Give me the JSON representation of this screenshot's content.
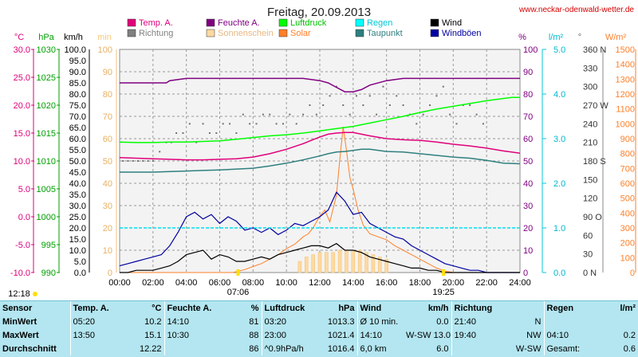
{
  "site": "www.neckar-odenwald-wetter.de",
  "chart_data": {
    "type": "line",
    "title": "Freitag, 20.09.2013",
    "x_ticks": [
      "00:00",
      "02:00",
      "04:00",
      "06:00",
      "08:00",
      "10:00",
      "12:00",
      "14:00",
      "16:00",
      "18:00",
      "20:00",
      "22:00",
      "24:00"
    ],
    "sunrise": "07:06",
    "sunset": "19:25",
    "left_marker": "12:18",
    "axes": {
      "temp": {
        "unit": "°C",
        "color": "#e0007a",
        "min": -10,
        "max": 30,
        "step": 5,
        "ticks": [
          "30.0",
          "25.0",
          "20.0",
          "15.0",
          "10.0",
          "5.0",
          "0.0",
          "-5.0",
          "-10.0"
        ]
      },
      "pressure": {
        "unit": "hPa",
        "color": "#00a000",
        "min": 990,
        "max": 1030,
        "step": 5,
        "ticks": [
          "1030",
          "1025",
          "1020",
          "1015",
          "1010",
          "1005",
          "1000",
          "995",
          "990"
        ]
      },
      "wind": {
        "unit": "km/h",
        "color": "#000000",
        "min": 0,
        "max": 100,
        "step": 5
      },
      "sunshine": {
        "unit": "min",
        "color": "#f5c97a",
        "min": 0,
        "max": 100,
        "step": 10
      },
      "humidity": {
        "unit": "%",
        "color": "#800080",
        "min": 0,
        "max": 100,
        "step": 10
      },
      "rain": {
        "unit": "l/m²",
        "color": "#00c8d8",
        "min": 0,
        "max": 5,
        "step": 1,
        "ticks": [
          "5.0",
          "4.0",
          "3.0",
          "2.0",
          "1.0",
          "0.0"
        ]
      },
      "direction": {
        "unit": "°",
        "color": "#555555",
        "min": 0,
        "max": 360,
        "step": 30,
        "ticks": [
          "360 N",
          "330",
          "300",
          "270 W",
          "240",
          "210",
          "180 S",
          "150",
          "120",
          "90 O",
          "60",
          "30",
          "0 N"
        ]
      },
      "solar": {
        "unit": "W/m²",
        "color": "#ff7f27",
        "min": 0,
        "max": 1500,
        "step": 100
      }
    },
    "legend": [
      {
        "name": "Temp. A.",
        "color": "#e0007a"
      },
      {
        "name": "Feuchte A.",
        "color": "#800080"
      },
      {
        "name": "Luftdruck",
        "color": "#00ff00"
      },
      {
        "name": "Regen",
        "color": "#00ffff"
      },
      {
        "name": "Wind",
        "color": "#000000"
      },
      {
        "name": "Richtung",
        "color": "#808080"
      },
      {
        "name": "Sonnenschein",
        "color": "#ffd9a0"
      },
      {
        "name": "Solar",
        "color": "#ff7f27"
      },
      {
        "name": "Taupunkt",
        "color": "#2f7f7f"
      },
      {
        "name": "Windböen",
        "color": "#0000a0"
      }
    ],
    "series": [
      {
        "name": "Temp. A.",
        "axis": "temp",
        "color": "#e0007a",
        "x": [
          0,
          1,
          2,
          3,
          4,
          5,
          6,
          7,
          8,
          9,
          10,
          10.5,
          11,
          11.5,
          12,
          12.5,
          13,
          13.5,
          14,
          14.5,
          15,
          16,
          17,
          18,
          19,
          20,
          21,
          22,
          23,
          24
        ],
        "y": [
          10.6,
          10.5,
          10.4,
          10.3,
          10.2,
          10.2,
          10.3,
          10.4,
          10.7,
          11.3,
          12.1,
          12.6,
          13.1,
          13.7,
          14.3,
          14.8,
          15.0,
          15.1,
          15.1,
          14.8,
          14.5,
          14.0,
          13.8,
          13.7,
          13.4,
          13.0,
          12.7,
          12.3,
          11.8,
          11.4
        ]
      },
      {
        "name": "Feuchte A.",
        "axis": "humidity",
        "color": "#800080",
        "x": [
          0,
          2,
          2.8,
          3,
          4,
          6,
          8,
          10,
          11,
          12,
          12.5,
          13,
          13.5,
          14,
          14.5,
          15,
          16,
          17,
          18,
          20,
          22,
          24
        ],
        "y": [
          85,
          85,
          85,
          86,
          87,
          87,
          87,
          87,
          87,
          86,
          85,
          83,
          81,
          81,
          82,
          84,
          86,
          87,
          87,
          87,
          87,
          87
        ],
        "dashed": false
      },
      {
        "name": "Luftdruck",
        "axis": "pressure",
        "color": "#00ff00",
        "x": [
          0,
          1,
          2,
          3,
          4,
          5,
          6,
          7,
          8,
          9,
          10,
          11,
          12,
          13,
          14,
          15,
          16,
          17,
          18,
          19,
          20,
          21,
          22,
          23,
          23.5,
          24
        ],
        "y": [
          1013.4,
          1013.3,
          1013.3,
          1013.4,
          1013.4,
          1013.5,
          1013.6,
          1013.9,
          1014.2,
          1014.5,
          1014.7,
          1015.0,
          1015.4,
          1015.8,
          1016.2,
          1016.8,
          1017.4,
          1018.0,
          1018.7,
          1019.3,
          1019.8,
          1020.3,
          1020.8,
          1021.2,
          1021.4,
          1021.4
        ]
      },
      {
        "name": "Taupunkt",
        "axis": "temp",
        "color": "#2f7f7f",
        "x": [
          0,
          2,
          4,
          6,
          8,
          9,
          10,
          11,
          12,
          12.5,
          13,
          13.5,
          14,
          14.5,
          15,
          16,
          17,
          18,
          19,
          20,
          21,
          22,
          23,
          24
        ],
        "y": [
          8.0,
          8.0,
          8.2,
          8.4,
          8.7,
          9.1,
          9.6,
          10.2,
          10.9,
          11.3,
          11.6,
          11.7,
          11.9,
          12.1,
          12.1,
          11.7,
          11.6,
          11.3,
          11.0,
          10.7,
          10.5,
          10.1,
          9.6,
          9.5
        ]
      },
      {
        "name": "Regen",
        "axis": "rain",
        "color": "#00e0f0",
        "x": [
          0,
          7,
          8,
          24
        ],
        "y": [
          1.0,
          1.0,
          1.0,
          1.0
        ]
      }
    ],
    "wind": {
      "axis": "wind",
      "color": "#000000",
      "x": [
        0,
        0.5,
        1,
        1.5,
        2,
        2.5,
        3,
        3.5,
        4,
        4.5,
        5,
        5.5,
        6,
        6.5,
        7,
        7.5,
        8,
        8.5,
        9,
        9.5,
        10,
        10.5,
        11,
        11.5,
        12,
        12.5,
        13,
        13.5,
        14,
        14.5,
        15,
        15.5,
        16,
        16.5,
        17,
        17.5,
        18,
        18.5,
        19,
        19.5,
        20,
        20.5,
        21,
        21.5,
        22,
        22.5,
        23,
        23.5,
        24
      ],
      "y": [
        0,
        0,
        1,
        1,
        1,
        2,
        3,
        5,
        8,
        9,
        10,
        6,
        8,
        7,
        5,
        5,
        6,
        7,
        6,
        8,
        9,
        10,
        11,
        12,
        12,
        11,
        13,
        10,
        10,
        9,
        7,
        6,
        5,
        4,
        3,
        2,
        2,
        1,
        1,
        0,
        0,
        0,
        0,
        0,
        0,
        0,
        0,
        0,
        0
      ]
    },
    "gusts": {
      "axis": "wind",
      "color": "#0000a0",
      "x": [
        0,
        0.5,
        1,
        1.5,
        2,
        2.5,
        3,
        3.5,
        4,
        4.5,
        5,
        5.5,
        6,
        6.5,
        7,
        7.5,
        8,
        8.5,
        9,
        9.5,
        10,
        10.5,
        11,
        11.5,
        12,
        12.5,
        13,
        13.5,
        14,
        14.5,
        15,
        15.5,
        16,
        16.5,
        17,
        17.5,
        18,
        18.5,
        19,
        19.5,
        20,
        20.5,
        21,
        21.5,
        22,
        22.5,
        23,
        23.5,
        24
      ],
      "y": [
        3,
        4,
        5,
        6,
        7,
        8,
        12,
        18,
        25,
        27,
        24,
        26,
        22,
        25,
        23,
        19,
        20,
        18,
        20,
        17,
        19,
        22,
        21,
        23,
        25,
        28,
        36,
        32,
        26,
        27,
        22,
        20,
        18,
        16,
        15,
        12,
        10,
        8,
        6,
        4,
        3,
        2,
        1,
        1,
        0,
        0,
        0,
        0,
        0
      ]
    },
    "solar": {
      "axis": "solar",
      "color": "#ff7f27",
      "x": [
        0,
        6.8,
        7.5,
        8,
        8.5,
        9,
        9.5,
        10,
        10.5,
        11,
        11.3,
        11.6,
        12,
        12.3,
        12.6,
        13,
        13.2,
        13.4,
        13.6,
        13.8,
        14,
        14.3,
        14.6,
        15,
        15.5,
        16,
        16.5,
        17,
        17.5,
        18,
        18.5,
        19,
        19.5,
        20,
        24
      ],
      "y": [
        0,
        0,
        20,
        40,
        60,
        90,
        120,
        160,
        190,
        240,
        260,
        300,
        380,
        420,
        340,
        520,
        760,
        980,
        820,
        640,
        560,
        420,
        320,
        260,
        240,
        220,
        180,
        150,
        120,
        90,
        60,
        30,
        10,
        0,
        0
      ]
    },
    "sunshine_bars": {
      "axis": "sunshine",
      "color": "#ffd9a0",
      "x": [
        10.8,
        11.2,
        11.6,
        12,
        12.4,
        12.8,
        13.2,
        13.6,
        14,
        14.4,
        14.8,
        15.2,
        15.6,
        16
      ],
      "y": [
        5,
        7,
        8,
        9,
        9,
        9,
        10,
        10,
        10,
        10,
        9,
        8,
        7,
        6
      ]
    },
    "direction_dots": {
      "axis": "direction",
      "color": "#707070",
      "x": [
        0.2,
        0.5,
        0.8,
        1.1,
        1.4,
        1.7,
        2.0,
        2.4,
        2.8,
        3.1,
        3.4,
        3.8,
        4.2,
        4.6,
        5,
        5.4,
        5.8,
        6.2,
        6.6,
        7,
        7.4,
        7.8,
        8.2,
        8.6,
        9,
        9.4,
        9.8,
        10.2,
        10.6,
        11,
        11.4,
        11.8,
        12.2,
        12.6,
        13,
        13.4,
        13.8,
        14.2,
        14.6,
        15,
        15.4,
        15.8,
        16.2,
        16.6,
        17,
        17.4,
        17.8,
        18.2,
        18.6,
        19,
        19.4,
        19.8,
        20.2,
        20.6,
        21,
        21.4,
        21.8
      ],
      "y": [
        180,
        180,
        180,
        180,
        180,
        180,
        180,
        195,
        210,
        210,
        225,
        225,
        240,
        210,
        240,
        225,
        225,
        240,
        240,
        225,
        255,
        240,
        240,
        255,
        255,
        240,
        240,
        255,
        240,
        255,
        270,
        255,
        270,
        285,
        300,
        270,
        255,
        285,
        270,
        285,
        255,
        300,
        270,
        285,
        270,
        255,
        240,
        255,
        270,
        285,
        300,
        255,
        240,
        270,
        270,
        255,
        240
      ]
    }
  },
  "stats": {
    "headers": {
      "sensor": "Sensor",
      "temp": "Temp. A.",
      "temp_unit": "°C",
      "hum": "Feuchte A.",
      "hum_unit": "%",
      "press": "Luftdruck",
      "press_unit": "hPa",
      "wind": "Wind",
      "wind_unit": "km/h",
      "dir": "Richtung",
      "rain": "Regen",
      "rain_unit": "l/m²"
    },
    "rows": [
      {
        "label": "MinWert",
        "temp_time": "05:20",
        "temp": "10.2",
        "hum_time": "14:10",
        "hum": "81",
        "press_time": "03:20",
        "press": "1013.3",
        "wind_label": "Ø 10 min.",
        "wind_dir": "",
        "wind": "0.0",
        "dir_time": "21:40",
        "dir": "N",
        "rain_time": "",
        "rain": ""
      },
      {
        "label": "MaxWert",
        "temp_time": "13:50",
        "temp": "15.1",
        "hum_time": "10:30",
        "hum": "88",
        "press_time": "23:00",
        "press": "1021.4",
        "wind_label": "14:10",
        "wind_dir": "W-SW",
        "wind": "13.0",
        "dir_time": "19:40",
        "dir": "NW",
        "rain_time": "04:10",
        "rain": "0.2"
      },
      {
        "label": "Durchschnitt",
        "temp_time": "",
        "temp": "12.22",
        "hum_time": "",
        "hum": "86",
        "press_time": "^0.9hPa/h",
        "press": "1016.4",
        "wind_label": "6,0 km",
        "wind_dir": "",
        "wind": "6.0",
        "dir_time": "",
        "dir": "W-SW",
        "rain_time": "Gesamt:",
        "rain": "0.6"
      }
    ]
  }
}
